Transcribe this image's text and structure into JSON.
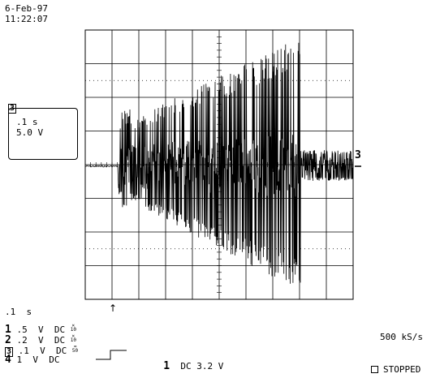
{
  "header": {
    "date": "6-Feb-97",
    "time": "11:22:07"
  },
  "trace_box": {
    "channel": "3",
    "timebase": ".1 s",
    "volts": "5.0 V"
  },
  "channel_marker": "3",
  "timebase": ".1  s",
  "channels": [
    {
      "num": "1",
      "volts": ".5",
      "unit": "V",
      "coupling": "DC",
      "probe_top": "×",
      "probe_bottom": "10"
    },
    {
      "num": "2",
      "volts": ".2",
      "unit": "V",
      "coupling": "DC",
      "probe_top": "×",
      "probe_bottom": "10"
    },
    {
      "num": "3",
      "volts": ".1",
      "unit": "V",
      "coupling": "DC",
      "probe_top": "≈",
      "probe_bottom": "50"
    },
    {
      "num": "4",
      "volts": "1",
      "unit": "V",
      "coupling": "DC",
      "probe_top": "",
      "probe_bottom": ""
    }
  ],
  "trigger": {
    "channel": "1",
    "coupling": "DC",
    "level": "3.2 V"
  },
  "sample_rate": "500 kS/s",
  "status": "STOPPED",
  "colors": {
    "trace": "#000000",
    "grid": "#000000",
    "background": "#ffffff"
  }
}
